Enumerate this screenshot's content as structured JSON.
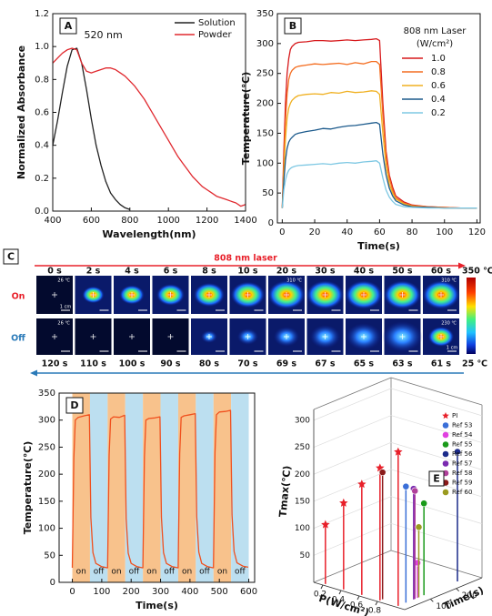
{
  "chart_data": [
    {
      "type": "line",
      "panel": "A",
      "xlabel": "Wavelength(nm)",
      "ylabel": "Normalized Absorbance",
      "annotation": "520 nm",
      "xlim": [
        400,
        1400
      ],
      "xticks": [
        400,
        600,
        800,
        1000,
        1200,
        1400
      ],
      "ylim": [
        0,
        1.2
      ],
      "yticks": [
        {
          "value": 0,
          "label": "0.0"
        },
        0.2,
        0.4,
        0.6,
        0.8,
        {
          "value": 1,
          "label": "1.0"
        },
        1.2
      ],
      "x": [
        400,
        425,
        450,
        475,
        500,
        525,
        550,
        575,
        600,
        625,
        650,
        675,
        700,
        725,
        750,
        775,
        800,
        825,
        850,
        875,
        900,
        925,
        950,
        975,
        1000,
        1025,
        1050,
        1075,
        1100,
        1125,
        1150,
        1175,
        1200,
        1225,
        1250,
        1275,
        1300,
        1325,
        1350,
        1375,
        1400
      ],
      "series": [
        {
          "name": "Solution",
          "color": "#222222",
          "values": [
            0.4,
            0.55,
            0.72,
            0.88,
            0.98,
            0.99,
            0.9,
            0.74,
            0.56,
            0.4,
            0.28,
            0.18,
            0.11,
            0.07,
            0.04,
            0.02,
            0.01,
            null,
            null,
            null,
            null,
            null,
            null,
            null,
            null,
            null,
            null,
            null,
            null,
            null,
            null,
            null,
            null,
            null,
            null,
            null,
            null,
            null,
            null,
            null,
            null
          ]
        },
        {
          "name": "Powder",
          "color": "#e0282e",
          "values": [
            0.9,
            0.93,
            0.96,
            0.98,
            0.99,
            0.98,
            0.9,
            0.85,
            0.84,
            0.85,
            0.86,
            0.87,
            0.87,
            0.86,
            0.84,
            0.82,
            0.79,
            0.76,
            0.72,
            0.68,
            0.63,
            0.58,
            0.53,
            0.48,
            0.43,
            0.38,
            0.33,
            0.29,
            0.25,
            0.21,
            0.18,
            0.15,
            0.13,
            0.11,
            0.09,
            0.08,
            0.07,
            0.06,
            0.05,
            0.03,
            0.04
          ]
        }
      ]
    },
    {
      "type": "line",
      "panel": "B",
      "xlabel": "Time(s)",
      "ylabel": "Temperature(℃)",
      "legend_title": "808 nm Laser",
      "legend_unit": "(W/cm²)",
      "xlim": [
        -3,
        122
      ],
      "xticks": [
        0,
        20,
        40,
        60,
        80,
        100,
        120
      ],
      "ylim": [
        0,
        350
      ],
      "yticks": [
        0,
        50,
        100,
        150,
        200,
        250,
        300,
        350
      ],
      "x": [
        0,
        1,
        2,
        3,
        4,
        5,
        6,
        8,
        10,
        15,
        20,
        25,
        30,
        35,
        40,
        45,
        50,
        55,
        58,
        60,
        62,
        64,
        66,
        68,
        70,
        75,
        80,
        90,
        100,
        110,
        120
      ],
      "series": [
        {
          "name": "1.0",
          "color": "#d7191c",
          "values": [
            25,
            120,
            200,
            250,
            275,
            290,
            295,
            300,
            302,
            303,
            305,
            305,
            304,
            305,
            306,
            305,
            306,
            307,
            308,
            305,
            200,
            120,
            80,
            60,
            45,
            35,
            30,
            27,
            26,
            25,
            25
          ]
        },
        {
          "name": "0.8",
          "color": "#f46d20",
          "values": [
            25,
            100,
            170,
            215,
            240,
            250,
            255,
            260,
            262,
            264,
            266,
            265,
            266,
            267,
            265,
            268,
            266,
            270,
            270,
            265,
            180,
            110,
            75,
            55,
            42,
            33,
            29,
            27,
            26,
            25,
            25
          ]
        },
        {
          "name": "0.6",
          "color": "#f0b020",
          "values": [
            25,
            85,
            140,
            175,
            192,
            200,
            205,
            210,
            213,
            215,
            216,
            215,
            218,
            217,
            220,
            218,
            219,
            221,
            220,
            215,
            150,
            95,
            65,
            50,
            40,
            32,
            28,
            26,
            25,
            25,
            25
          ]
        },
        {
          "name": "0.4",
          "color": "#1c5a8c",
          "values": [
            25,
            70,
            105,
            125,
            135,
            140,
            143,
            148,
            150,
            153,
            155,
            158,
            157,
            160,
            162,
            163,
            165,
            167,
            168,
            165,
            115,
            80,
            58,
            45,
            37,
            30,
            27,
            26,
            25,
            25,
            25
          ]
        },
        {
          "name": "0.2",
          "color": "#7ec8e3",
          "values": [
            25,
            55,
            72,
            82,
            88,
            91,
            93,
            95,
            96,
            97,
            98,
            99,
            98,
            100,
            101,
            100,
            102,
            103,
            104,
            100,
            75,
            55,
            43,
            36,
            31,
            27,
            26,
            25,
            25,
            25,
            25
          ]
        }
      ]
    },
    {
      "type": "line",
      "panel": "D",
      "xlabel": "Time(s)",
      "ylabel": "Temperature(℃)",
      "xlim": [
        -45,
        620
      ],
      "xticks": [
        0,
        100,
        200,
        300,
        400,
        500,
        600
      ],
      "ylim": [
        0,
        350
      ],
      "yticks": [
        0,
        50,
        100,
        150,
        200,
        250,
        300,
        350
      ],
      "bands": [
        {
          "label": "on",
          "start": 0,
          "end": 60,
          "color": "#f8c28c"
        },
        {
          "label": "off",
          "start": 60,
          "end": 120,
          "color": "#bcdff0"
        },
        {
          "label": "on",
          "start": 120,
          "end": 180,
          "color": "#f8c28c"
        },
        {
          "label": "off",
          "start": 180,
          "end": 240,
          "color": "#bcdff0"
        },
        {
          "label": "on",
          "start": 240,
          "end": 300,
          "color": "#f8c28c"
        },
        {
          "label": "off",
          "start": 300,
          "end": 360,
          "color": "#bcdff0"
        },
        {
          "label": "on",
          "start": 360,
          "end": 420,
          "color": "#f8c28c"
        },
        {
          "label": "off",
          "start": 420,
          "end": 480,
          "color": "#bcdff0"
        },
        {
          "label": "on",
          "start": 480,
          "end": 540,
          "color": "#f8c28c"
        },
        {
          "label": "off",
          "start": 540,
          "end": 600,
          "color": "#bcdff0"
        }
      ],
      "x": [
        0,
        5,
        10,
        20,
        40,
        58,
        63,
        70,
        80,
        100,
        118,
        120,
        125,
        130,
        140,
        160,
        178,
        183,
        190,
        200,
        220,
        238,
        240,
        245,
        250,
        260,
        280,
        298,
        303,
        310,
        320,
        340,
        358,
        360,
        365,
        370,
        380,
        400,
        418,
        423,
        430,
        440,
        460,
        478,
        480,
        485,
        490,
        500,
        520,
        538,
        543,
        550,
        560,
        580,
        598
      ],
      "series": [
        {
          "name": "Temperature",
          "color": "#f0501e",
          "values": [
            27,
            230,
            300,
            305,
            308,
            310,
            120,
            55,
            35,
            29,
            27,
            27,
            235,
            302,
            306,
            305,
            309,
            118,
            54,
            35,
            29,
            27,
            27,
            232,
            300,
            303,
            304,
            306,
            120,
            55,
            35,
            29,
            27,
            27,
            238,
            305,
            308,
            310,
            312,
            122,
            56,
            35,
            29,
            27,
            27,
            240,
            310,
            315,
            316,
            318,
            125,
            57,
            36,
            30,
            28
          ]
        }
      ]
    },
    {
      "type": "scatter3d",
      "panel": "E",
      "zlabel": "Tmax(℃)",
      "xlabel": "P(W/cm²)",
      "ylabel": "Time(s)",
      "xlim": [
        0.1,
        1.1
      ],
      "xticks": [
        0.2,
        0.4,
        0.6,
        0.8
      ],
      "ylim": [
        0,
        300
      ],
      "yticks": [
        100,
        200
      ],
      "zlim": [
        0,
        320
      ],
      "zticks": [
        50,
        100,
        150,
        200,
        250,
        300
      ],
      "series": [
        {
          "name": "PI",
          "color": "#e8202a",
          "marker": "star",
          "power": [
            0.2,
            0.4,
            0.6,
            0.8,
            1.0
          ],
          "time": [
            10,
            10,
            10,
            10,
            10
          ],
          "values": [
            110,
            160,
            205,
            245,
            285
          ]
        },
        {
          "name": "Ref 53",
          "color": "#3a6fd8",
          "marker": "ball",
          "power": [
            1.0
          ],
          "time": [
            40
          ],
          "values": [
            215
          ]
        },
        {
          "name": "Ref 54",
          "color": "#e040e0",
          "marker": "ball",
          "power": [
            1.0
          ],
          "time": [
            85
          ],
          "values": [
            65
          ]
        },
        {
          "name": "Ref 55",
          "color": "#1a9a1a",
          "marker": "ball",
          "power": [
            1.0
          ],
          "time": [
            110
          ],
          "values": [
            170
          ]
        },
        {
          "name": "Ref 56",
          "color": "#1a2a8a",
          "marker": "ball",
          "power": [
            1.0
          ],
          "time": [
            240
          ],
          "values": [
            240
          ]
        },
        {
          "name": "Ref 57",
          "color": "#7a2ab0",
          "marker": "ball",
          "power": [
            1.0
          ],
          "time": [
            70
          ],
          "values": [
            205
          ]
        },
        {
          "name": "Ref 58",
          "color": "#b0409a",
          "marker": "ball",
          "power": [
            1.0
          ],
          "time": [
            75
          ],
          "values": [
            200
          ]
        },
        {
          "name": "Ref 59",
          "color": "#8b1a1a",
          "marker": "ball",
          "power": [
            0.8
          ],
          "time": [
            20
          ],
          "values": [
            235
          ]
        },
        {
          "name": "Ref 60",
          "color": "#9a9a20",
          "marker": "ball",
          "power": [
            1.0
          ],
          "time": [
            90
          ],
          "values": [
            130
          ]
        }
      ]
    }
  ],
  "thermal_images": {
    "panel": "C",
    "laser_label": "808 nm laser",
    "on_label": "On",
    "off_label": "Off",
    "colorbar_max": "350 ℃",
    "colorbar_min": "25 ℃",
    "scale_label": "1 cm",
    "on_row": [
      {
        "time": "0 s",
        "temp": "26 ℃"
      },
      {
        "time": "2 s"
      },
      {
        "time": "4 s"
      },
      {
        "time": "6 s"
      },
      {
        "time": "8 s"
      },
      {
        "time": "10 s"
      },
      {
        "time": "20 s",
        "temp": "310 ℃"
      },
      {
        "time": "30 s"
      },
      {
        "time": "40 s"
      },
      {
        "time": "50 s"
      },
      {
        "time": "60 s",
        "temp": "310 ℃"
      }
    ],
    "off_row": [
      {
        "time": "120 s",
        "temp": "26 ℃"
      },
      {
        "time": "110 s"
      },
      {
        "time": "100 s"
      },
      {
        "time": "90 s"
      },
      {
        "time": "80 s"
      },
      {
        "time": "70 s"
      },
      {
        "time": "69 s"
      },
      {
        "time": "67 s"
      },
      {
        "time": "65 s"
      },
      {
        "time": "63 s"
      },
      {
        "time": "61 s",
        "temp": "230 ℃"
      }
    ]
  }
}
